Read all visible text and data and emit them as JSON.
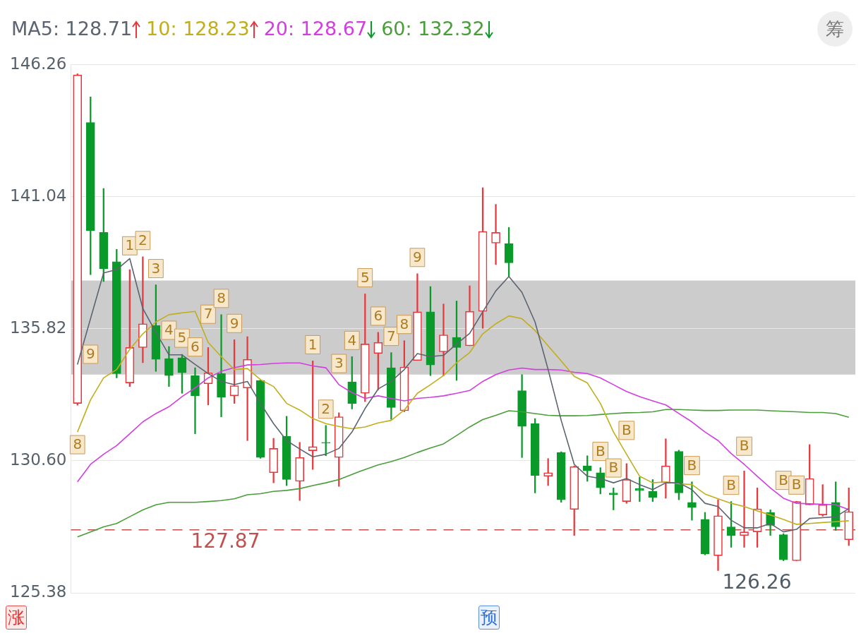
{
  "chart_data": {
    "type": "candlestick",
    "categories": [
      null,
      null,
      null,
      null,
      null,
      null,
      null,
      null,
      null,
      null,
      null,
      null,
      null,
      null,
      null,
      null,
      null,
      null,
      null,
      null,
      null,
      null,
      null,
      null,
      null,
      null,
      null,
      null,
      null,
      null,
      null,
      null,
      null,
      null,
      null,
      null,
      null,
      null,
      null,
      null,
      null,
      null,
      null,
      null,
      null,
      null,
      null,
      null,
      null,
      null,
      null,
      null,
      null,
      null,
      null,
      null,
      null,
      null,
      null,
      null
    ],
    "ohlc": [
      [
        132.87,
        145.9,
        132.8,
        145.86
      ],
      [
        143.98,
        144.99,
        137.96,
        139.7
      ],
      [
        139.63,
        141.37,
        137.69,
        138.19
      ],
      [
        138.47,
        138.96,
        133.88,
        134.05
      ],
      [
        133.68,
        138.16,
        133.54,
        135.08
      ],
      [
        135.08,
        138.67,
        134.48,
        136.02
      ],
      [
        135.95,
        137.56,
        134.14,
        134.61
      ],
      [
        134.64,
        135.12,
        133.54,
        133.97
      ],
      [
        134.68,
        134.81,
        133.27,
        134.08
      ],
      [
        133.97,
        134.28,
        131.67,
        133.17
      ],
      [
        133.65,
        135.08,
        132.81,
        134.08
      ],
      [
        134.05,
        136.38,
        132.34,
        133.11
      ],
      [
        133.17,
        135.39,
        132.87,
        133.57
      ],
      [
        133.48,
        135.51,
        131.4,
        134.61
      ],
      [
        133.78,
        133.8,
        130.7,
        130.73
      ],
      [
        130.13,
        131.49,
        129.73,
        131.09
      ],
      [
        131.57,
        132.36,
        129.62,
        129.86
      ],
      [
        129.79,
        131.33,
        129.03,
        130.73
      ],
      [
        131.0,
        134.55,
        130.26,
        131.16
      ],
      [
        131.33,
        132.0,
        130.8,
        131.3
      ],
      [
        130.73,
        132.5,
        129.59,
        132.34
      ],
      [
        133.72,
        134.72,
        132.65,
        132.87
      ],
      [
        133.27,
        137.2,
        132.94,
        135.22
      ],
      [
        134.85,
        135.68,
        133.41,
        135.28
      ],
      [
        134.28,
        134.88,
        132.24,
        132.71
      ],
      [
        132.58,
        135.35,
        132.54,
        134.31
      ],
      [
        134.57,
        138.0,
        134.57,
        136.49
      ],
      [
        136.49,
        137.49,
        133.97,
        134.39
      ],
      [
        134.91,
        136.8,
        133.97,
        135.58
      ],
      [
        135.48,
        136.92,
        133.78,
        135.08
      ],
      [
        135.15,
        137.52,
        135.15,
        136.51
      ],
      [
        136.51,
        141.4,
        135.84,
        139.67
      ],
      [
        139.21,
        140.74,
        138.36,
        139.63
      ],
      [
        139.19,
        139.83,
        137.89,
        138.43
      ],
      [
        133.37,
        134.01,
        130.73,
        131.96
      ],
      [
        132.07,
        132.27,
        129.33,
        130.02
      ],
      [
        129.99,
        130.69,
        129.62,
        130.13
      ],
      [
        130.93,
        130.96,
        128.96,
        129.06
      ],
      [
        128.68,
        130.4,
        127.65,
        130.37
      ],
      [
        130.4,
        130.8,
        129.79,
        130.2
      ],
      [
        130.13,
        130.33,
        129.29,
        129.53
      ],
      [
        129.33,
        129.53,
        128.66,
        129.26
      ],
      [
        128.99,
        130.49,
        128.92,
        129.86
      ],
      [
        129.5,
        129.95,
        128.99,
        129.42
      ],
      [
        129.39,
        129.86,
        128.99,
        129.15
      ],
      [
        129.73,
        131.47,
        129.12,
        130.4
      ],
      [
        130.97,
        131.02,
        129.06,
        129.33
      ],
      [
        128.96,
        129.77,
        128.25,
        128.75
      ],
      [
        128.29,
        128.56,
        126.88,
        126.92
      ],
      [
        126.85,
        129.06,
        126.26,
        128.43
      ],
      [
        127.99,
        128.99,
        127.18,
        127.65
      ],
      [
        127.65,
        130.2,
        127.18,
        127.79
      ],
      [
        127.79,
        129.53,
        127.18,
        128.7
      ],
      [
        128.56,
        128.66,
        127.65,
        128.05
      ],
      [
        127.68,
        127.72,
        126.65,
        126.69
      ],
      [
        126.65,
        129.0,
        126.65,
        128.99
      ],
      [
        128.86,
        131.24,
        128.86,
        129.9
      ],
      [
        128.46,
        129.66,
        128.41,
        128.86
      ],
      [
        128.96,
        129.77,
        127.85,
        127.99
      ],
      [
        127.48,
        129.53,
        127.25,
        128.59
      ]
    ],
    "value_labels": [
      "8",
      "9",
      null,
      null,
      "1",
      "2",
      "3",
      "4",
      "5",
      "6",
      "7",
      "8",
      "9",
      null,
      null,
      null,
      null,
      null,
      "1",
      "2",
      "3",
      "4",
      "5",
      "6",
      "7",
      "8",
      "9",
      null,
      null,
      null,
      null,
      null,
      null,
      null,
      null,
      null,
      null,
      null,
      null,
      null,
      "B",
      "B",
      "B",
      null,
      null,
      null,
      null,
      "B",
      null,
      null,
      "B",
      "B",
      null,
      null,
      "B",
      "B",
      null,
      null,
      null,
      null
    ],
    "series": [
      {
        "type": "line",
        "name": "MA5: 128.71",
        "color": "#5b6470",
        "values": [
          134.41,
          136.22,
          138.03,
          138.16,
          138.6,
          136.62,
          135.68,
          134.79,
          134.79,
          134.41,
          134.05,
          133.74,
          133.61,
          133.74,
          132.87,
          132.07,
          131.4,
          131.07,
          130.76,
          130.86,
          131.09,
          131.74,
          132.67,
          133.44,
          133.74,
          134.21,
          134.84,
          134.72,
          134.77,
          135.22,
          135.64,
          136.49,
          137.32,
          137.89,
          137.26,
          136.09,
          134.21,
          132.2,
          130.46,
          129.99,
          129.9,
          129.73,
          129.9,
          129.66,
          129.46,
          129.73,
          129.73,
          129.46,
          128.92,
          128.79,
          128.25,
          127.95,
          127.95,
          128.12,
          127.79,
          127.89,
          128.32,
          128.35,
          128.39,
          128.71
        ]
      },
      {
        "type": "line",
        "name": "10: 128.23",
        "color": "#c2ae1c",
        "values": [
          131.74,
          133.01,
          133.88,
          134.21,
          135.01,
          135.62,
          136.09,
          136.38,
          136.45,
          136.51,
          135.28,
          134.72,
          134.21,
          134.25,
          133.81,
          133.54,
          132.87,
          132.61,
          132.27,
          132.07,
          131.96,
          131.87,
          131.94,
          132.1,
          132.2,
          132.61,
          133.27,
          133.61,
          133.97,
          134.48,
          134.88,
          135.62,
          136.02,
          136.33,
          136.22,
          135.75,
          135.15,
          134.55,
          133.94,
          133.68,
          132.87,
          131.74,
          130.86,
          129.99,
          129.73,
          129.77,
          129.69,
          129.66,
          129.29,
          129.1,
          128.92,
          128.79,
          128.62,
          128.46,
          128.28,
          128.09,
          128.12,
          128.16,
          128.19,
          128.23
        ]
      },
      {
        "type": "line",
        "name": "20: 128.67",
        "color": "#d23ee0",
        "values": [
          129.77,
          130.46,
          130.86,
          131.2,
          131.67,
          132.14,
          132.47,
          132.74,
          133.14,
          133.48,
          133.88,
          134.14,
          134.28,
          134.39,
          134.41,
          134.45,
          134.47,
          134.47,
          134.35,
          134.28,
          133.61,
          133.3,
          133.07,
          133.17,
          133.07,
          132.97,
          133.07,
          133.11,
          133.17,
          133.27,
          133.38,
          133.74,
          134.01,
          134.19,
          134.27,
          134.21,
          134.21,
          134.19,
          134.1,
          134.05,
          133.88,
          133.61,
          133.34,
          133.14,
          132.97,
          132.81,
          132.47,
          132.14,
          131.74,
          131.4,
          130.89,
          130.46,
          129.99,
          129.53,
          129.12,
          128.92,
          128.9,
          128.88,
          128.86,
          128.67
        ]
      },
      {
        "type": "line",
        "name": "60: 132.32",
        "color": "#4a9e3a",
        "values": [
          127.59,
          127.79,
          127.99,
          128.12,
          128.39,
          128.66,
          128.86,
          128.96,
          128.96,
          128.96,
          128.99,
          129.03,
          129.1,
          129.26,
          129.3,
          129.39,
          129.43,
          129.5,
          129.62,
          129.73,
          129.86,
          130.06,
          130.26,
          130.44,
          130.57,
          130.73,
          130.93,
          131.11,
          131.27,
          131.6,
          131.94,
          132.23,
          132.4,
          132.58,
          132.54,
          132.47,
          132.4,
          132.38,
          132.38,
          132.39,
          132.43,
          132.47,
          132.5,
          132.51,
          132.54,
          132.63,
          132.63,
          132.61,
          132.59,
          132.59,
          132.61,
          132.61,
          132.61,
          132.58,
          132.56,
          132.54,
          132.51,
          132.51,
          132.47,
          132.32
        ]
      }
    ],
    "ylim": [
      125.38,
      146.26
    ],
    "yticks": [
      125.38,
      {
        "value": 130.6,
        "label": "130.60"
      },
      135.82,
      141.04,
      146.26
    ],
    "grid": "y",
    "legend": "top left",
    "marker": "none",
    "ref_lines": [
      {
        "axis": "y",
        "value": 127.87,
        "label": "127.87",
        "color": "#c0504d",
        "line_style": "dashed"
      }
    ],
    "bands": [
      {
        "axis": "y",
        "from": 134.01,
        "to": 137.73,
        "color": "#cccccc"
      }
    ],
    "annotations": [
      "126.26",
      "涨",
      "预",
      "筹"
    ]
  }
}
